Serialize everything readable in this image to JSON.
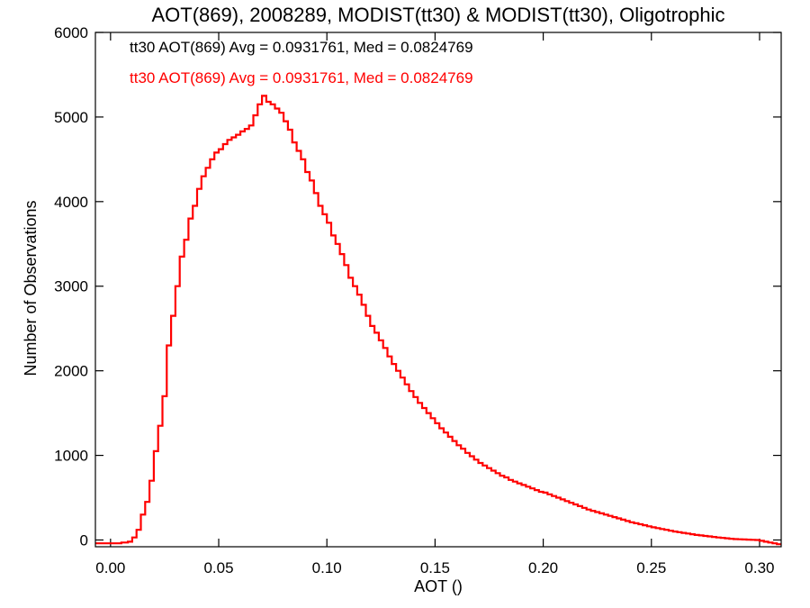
{
  "chart_data": {
    "type": "histogram",
    "title": "AOT(869), 2008289, MODIST(tt30) & MODIST(tt30), Oligotrophic",
    "xlabel": "AOT ()",
    "ylabel": "Number of Observations",
    "xlim": [
      -0.007,
      0.31
    ],
    "ylim": [
      -80,
      6000
    ],
    "xticks": [
      "0.00",
      "0.05",
      "0.10",
      "0.15",
      "0.20",
      "0.25",
      "0.30"
    ],
    "yticks": [
      "0",
      "1000",
      "2000",
      "3000",
      "4000",
      "5000",
      "6000"
    ],
    "legend": [
      {
        "text": "tt30 AOT(869) Avg = 0.0931761, Med = 0.0824769",
        "color": "#000000"
      },
      {
        "text": "tt30 AOT(869) Avg = 0.0931761, Med = 0.0824769",
        "color": "#ff0000"
      }
    ],
    "series": [
      {
        "color": "#ff0000",
        "x": [
          -0.007,
          0.0,
          0.005,
          0.008,
          0.01,
          0.012,
          0.014,
          0.016,
          0.018,
          0.02,
          0.022,
          0.024,
          0.026,
          0.028,
          0.03,
          0.032,
          0.034,
          0.036,
          0.038,
          0.04,
          0.042,
          0.044,
          0.046,
          0.048,
          0.05,
          0.052,
          0.054,
          0.056,
          0.058,
          0.06,
          0.062,
          0.064,
          0.066,
          0.068,
          0.07,
          0.072,
          0.074,
          0.076,
          0.078,
          0.08,
          0.082,
          0.084,
          0.086,
          0.088,
          0.09,
          0.092,
          0.094,
          0.096,
          0.098,
          0.1,
          0.102,
          0.104,
          0.106,
          0.108,
          0.11,
          0.112,
          0.114,
          0.116,
          0.118,
          0.12,
          0.122,
          0.124,
          0.126,
          0.128,
          0.13,
          0.132,
          0.134,
          0.136,
          0.138,
          0.14,
          0.142,
          0.144,
          0.146,
          0.148,
          0.15,
          0.152,
          0.154,
          0.156,
          0.158,
          0.16,
          0.162,
          0.164,
          0.166,
          0.168,
          0.17,
          0.172,
          0.174,
          0.176,
          0.178,
          0.18,
          0.182,
          0.184,
          0.186,
          0.188,
          0.19,
          0.192,
          0.194,
          0.196,
          0.198,
          0.2,
          0.202,
          0.204,
          0.206,
          0.208,
          0.21,
          0.212,
          0.214,
          0.216,
          0.218,
          0.22,
          0.222,
          0.224,
          0.226,
          0.228,
          0.23,
          0.232,
          0.234,
          0.236,
          0.238,
          0.24,
          0.242,
          0.244,
          0.246,
          0.248,
          0.25,
          0.252,
          0.254,
          0.256,
          0.258,
          0.26,
          0.262,
          0.264,
          0.266,
          0.268,
          0.27,
          0.272,
          0.274,
          0.276,
          0.278,
          0.28,
          0.282,
          0.284,
          0.286,
          0.288,
          0.29,
          0.292,
          0.294,
          0.296,
          0.298,
          0.3,
          0.302,
          0.304,
          0.306,
          0.308
        ],
        "y": [
          -40,
          -40,
          -30,
          -20,
          30,
          120,
          300,
          450,
          700,
          1050,
          1350,
          1700,
          2300,
          2650,
          3000,
          3350,
          3550,
          3800,
          3950,
          4150,
          4300,
          4400,
          4500,
          4580,
          4620,
          4680,
          4730,
          4760,
          4790,
          4830,
          4860,
          4900,
          5020,
          5150,
          5250,
          5180,
          5150,
          5100,
          5050,
          4950,
          4850,
          4700,
          4600,
          4500,
          4350,
          4250,
          4100,
          3950,
          3850,
          3750,
          3600,
          3500,
          3380,
          3250,
          3100,
          3000,
          2900,
          2780,
          2650,
          2530,
          2450,
          2360,
          2270,
          2170,
          2080,
          2000,
          1920,
          1840,
          1760,
          1690,
          1620,
          1560,
          1500,
          1440,
          1380,
          1320,
          1270,
          1220,
          1170,
          1120,
          1080,
          1030,
          990,
          950,
          910,
          880,
          850,
          820,
          790,
          760,
          740,
          710,
          690,
          670,
          650,
          630,
          610,
          590,
          570,
          560,
          540,
          520,
          500,
          480,
          460,
          440,
          420,
          400,
          380,
          360,
          345,
          330,
          315,
          300,
          285,
          270,
          255,
          240,
          225,
          210,
          198,
          186,
          174,
          162,
          150,
          140,
          130,
          120,
          110,
          100,
          92,
          84,
          76,
          68,
          60,
          54,
          48,
          42,
          36,
          30,
          25,
          20,
          15,
          10,
          8,
          6,
          4,
          2,
          0,
          -10,
          -20,
          -30,
          -40,
          -50
        ]
      }
    ]
  }
}
